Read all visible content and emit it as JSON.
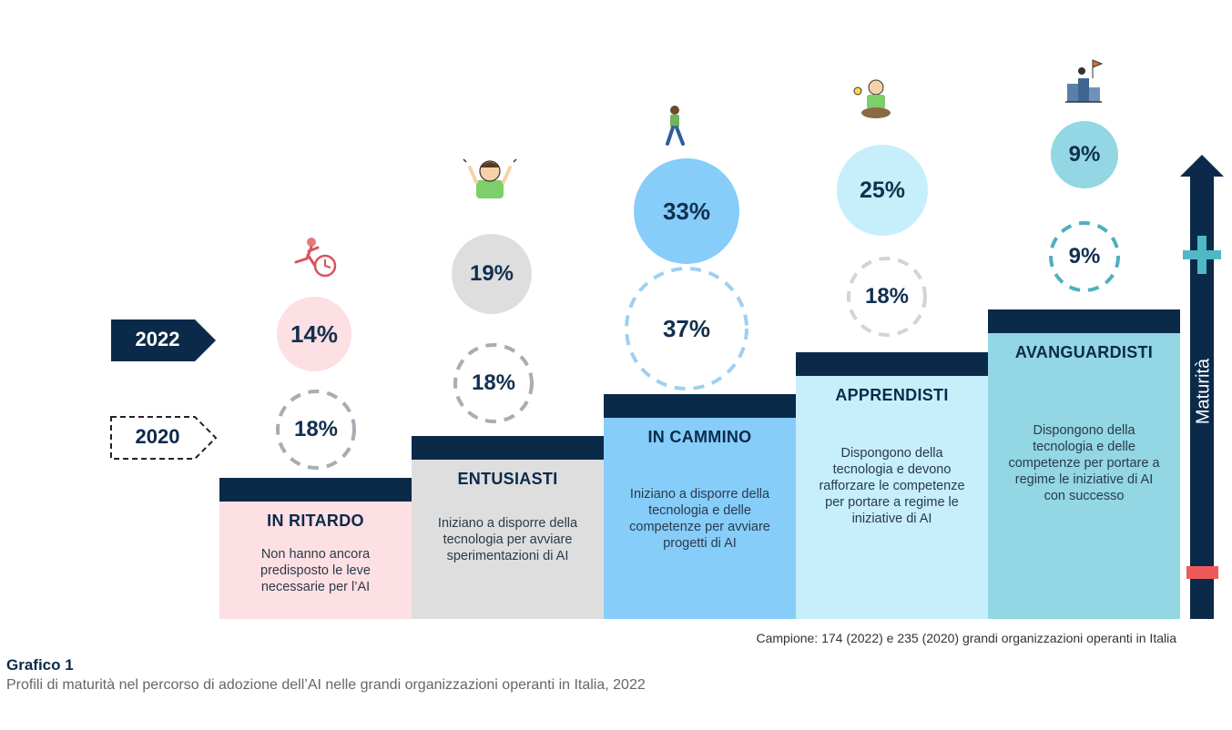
{
  "chart_data": {
    "type": "staircase-bubble",
    "title": "Grafico 1",
    "subtitle": "Profili di maturità nel percorso di adozione dell’AI nelle grandi organizzazioni operanti in Italia, 2022",
    "source": "Campione: 174 (2022) e 235 (2020) grandi organizzazioni operanti in Italia",
    "axis_label": "Maturità",
    "axis_plus": "+",
    "axis_minus": "-",
    "legend": [
      {
        "year": "2022",
        "style": "solid"
      },
      {
        "year": "2020",
        "style": "dashed"
      }
    ],
    "categories": [
      "IN RITARDO",
      "ENTUSIASTI",
      "IN CAMMINO",
      "APPRENDISTI",
      "AVANGUARDISTI"
    ],
    "descriptions": [
      "Non hanno ancora predisposto le leve necessarie per l’AI",
      "Iniziano a disporre della tecnologia per avviare sperimentazioni di AI",
      "Iniziano a disporre della tecnologia e delle competenze per avviare progetti di AI",
      "Dispongono della tecnologia e devono rafforzare le competenze per portare a regime le iniziative di AI",
      "Dispongono della tecnologia e delle competenze per portare a regime le iniziative di AI con successo"
    ],
    "series": [
      {
        "name": "2022",
        "values": [
          14,
          19,
          33,
          25,
          9
        ],
        "labels": [
          "14%",
          "19%",
          "33%",
          "25%",
          "9%"
        ]
      },
      {
        "name": "2020",
        "values": [
          18,
          18,
          37,
          18,
          9
        ],
        "labels": [
          "18%",
          "18%",
          "37%",
          "18%",
          "9%"
        ]
      }
    ],
    "colors": {
      "navy": "#0b2a4a",
      "panels": [
        "#fde0e3",
        "#dedede",
        "#86cdfa",
        "#c6eefb",
        "#92d7e3"
      ],
      "bubbles_2022": [
        "#fde0e3",
        "#dedede",
        "#86cdfa",
        "#c6eefb",
        "#92d7e3"
      ],
      "dashes_2020": [
        "#a7adb4",
        "#a7adb4",
        "#9fd0ef",
        "#d4d4d4",
        "#4fb0be"
      ],
      "plus": "#4fb8c4",
      "minus": "#ee5a5a"
    },
    "icons": [
      "running-late-icon",
      "excited-person-icon",
      "walking-person-icon",
      "learning-person-icon",
      "summit-flag-icon"
    ]
  }
}
